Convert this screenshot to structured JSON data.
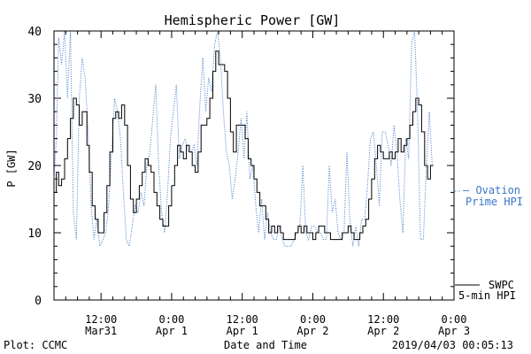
{
  "chart_data": {
    "type": "line",
    "title": "Hemispheric Power [GW]",
    "xlabel": "Date and Time",
    "ylabel": "P [GW]",
    "ylim": [
      0,
      40
    ],
    "yticks": [
      0,
      10,
      20,
      30,
      40
    ],
    "x_units": "hours since Mar 31 00:00",
    "xlim": [
      4,
      72
    ],
    "xticks": [
      {
        "x": 12,
        "line1": "12:00",
        "line2": "Mar31"
      },
      {
        "x": 24,
        "line1": "0:00",
        "line2": "Apr 1"
      },
      {
        "x": 36,
        "line1": "12:00",
        "line2": "Apr 1"
      },
      {
        "x": 48,
        "line1": "0:00",
        "line2": "Apr 2"
      },
      {
        "x": 60,
        "line1": "12:00",
        "line2": "Apr 2"
      },
      {
        "x": 72,
        "line1": "0:00",
        "line2": "Apr 3"
      }
    ],
    "series": [
      {
        "name": "SWPC 5-min HPI",
        "color": "#000000",
        "style": "solid",
        "points": [
          [
            4.0,
            16
          ],
          [
            4.4,
            19
          ],
          [
            4.8,
            17
          ],
          [
            5.3,
            18
          ],
          [
            5.8,
            21
          ],
          [
            6.3,
            24
          ],
          [
            6.8,
            27
          ],
          [
            7.3,
            30
          ],
          [
            7.8,
            29
          ],
          [
            8.3,
            26
          ],
          [
            8.8,
            28
          ],
          [
            9.2,
            28
          ],
          [
            9.6,
            23
          ],
          [
            10.0,
            19
          ],
          [
            10.5,
            14
          ],
          [
            11.0,
            12
          ],
          [
            11.5,
            10
          ],
          [
            12.0,
            10
          ],
          [
            12.5,
            13
          ],
          [
            13.0,
            17
          ],
          [
            13.5,
            22
          ],
          [
            14.0,
            27
          ],
          [
            14.5,
            28
          ],
          [
            15.0,
            27
          ],
          [
            15.5,
            29
          ],
          [
            16.0,
            26
          ],
          [
            16.5,
            20
          ],
          [
            17.0,
            15
          ],
          [
            17.5,
            13
          ],
          [
            18.0,
            15
          ],
          [
            18.5,
            17
          ],
          [
            19.0,
            19
          ],
          [
            19.5,
            21
          ],
          [
            20.0,
            20
          ],
          [
            20.5,
            19
          ],
          [
            21.0,
            16
          ],
          [
            21.5,
            14
          ],
          [
            22.0,
            12
          ],
          [
            22.5,
            11
          ],
          [
            23.0,
            11
          ],
          [
            23.5,
            14
          ],
          [
            24.0,
            17
          ],
          [
            24.5,
            20
          ],
          [
            25.0,
            23
          ],
          [
            25.5,
            22
          ],
          [
            26.0,
            21
          ],
          [
            26.5,
            23
          ],
          [
            27.0,
            22
          ],
          [
            27.5,
            20
          ],
          [
            28.0,
            19
          ],
          [
            28.5,
            22
          ],
          [
            29.0,
            26
          ],
          [
            29.5,
            26
          ],
          [
            30.0,
            27
          ],
          [
            30.5,
            30
          ],
          [
            31.0,
            34
          ],
          [
            31.5,
            37
          ],
          [
            32.0,
            35
          ],
          [
            32.5,
            35
          ],
          [
            33.0,
            34
          ],
          [
            33.5,
            30
          ],
          [
            34.0,
            25
          ],
          [
            34.5,
            22
          ],
          [
            35.0,
            26
          ],
          [
            35.5,
            26
          ],
          [
            36.0,
            26
          ],
          [
            36.5,
            24
          ],
          [
            37.0,
            21
          ],
          [
            37.5,
            20
          ],
          [
            38.0,
            18
          ],
          [
            38.5,
            16
          ],
          [
            39.0,
            14
          ],
          [
            39.5,
            14
          ],
          [
            40.0,
            12
          ],
          [
            40.5,
            10
          ],
          [
            41.0,
            11
          ],
          [
            41.5,
            10
          ],
          [
            42.0,
            11
          ],
          [
            42.5,
            10
          ],
          [
            43.0,
            9
          ],
          [
            43.5,
            9
          ],
          [
            44.0,
            9
          ],
          [
            44.5,
            9
          ],
          [
            45.0,
            10
          ],
          [
            45.5,
            11
          ],
          [
            46.0,
            10
          ],
          [
            46.5,
            11
          ],
          [
            47.0,
            10
          ],
          [
            47.5,
            10
          ],
          [
            48.0,
            9
          ],
          [
            48.5,
            10
          ],
          [
            49.0,
            11
          ],
          [
            49.5,
            11
          ],
          [
            50.0,
            10
          ],
          [
            50.5,
            10
          ],
          [
            51.0,
            9
          ],
          [
            51.5,
            9
          ],
          [
            52.0,
            9
          ],
          [
            52.5,
            9
          ],
          [
            53.0,
            10
          ],
          [
            53.5,
            10
          ],
          [
            54.0,
            11
          ],
          [
            54.5,
            10
          ],
          [
            55.0,
            9
          ],
          [
            55.5,
            9
          ],
          [
            56.0,
            10
          ],
          [
            56.5,
            11
          ],
          [
            57.0,
            12
          ],
          [
            57.5,
            15
          ],
          [
            58.0,
            18
          ],
          [
            58.5,
            21
          ],
          [
            59.0,
            23
          ],
          [
            59.5,
            22
          ],
          [
            60.0,
            21
          ],
          [
            60.5,
            21
          ],
          [
            61.0,
            22
          ],
          [
            61.5,
            21
          ],
          [
            62.0,
            22
          ],
          [
            62.5,
            24
          ],
          [
            63.0,
            22
          ],
          [
            63.5,
            23
          ],
          [
            64.0,
            24
          ],
          [
            64.5,
            26
          ],
          [
            65.0,
            28
          ],
          [
            65.5,
            30
          ],
          [
            66.0,
            29
          ],
          [
            66.5,
            25
          ],
          [
            67.0,
            20
          ],
          [
            67.5,
            18
          ],
          [
            68.0,
            20
          ],
          [
            68.5,
            20
          ]
        ]
      },
      {
        "name": "Ovation Prime HPI",
        "color": "#3a78c8",
        "style": "dotted",
        "points": [
          [
            4.0,
            18
          ],
          [
            4.4,
            24
          ],
          [
            4.8,
            39
          ],
          [
            5.3,
            35
          ],
          [
            5.8,
            40
          ],
          [
            6.3,
            30
          ],
          [
            6.8,
            41
          ],
          [
            7.3,
            13
          ],
          [
            7.8,
            9
          ],
          [
            8.3,
            30
          ],
          [
            8.8,
            36
          ],
          [
            9.3,
            33
          ],
          [
            9.8,
            25
          ],
          [
            10.3,
            14
          ],
          [
            10.8,
            9
          ],
          [
            11.3,
            12
          ],
          [
            11.8,
            8
          ],
          [
            12.3,
            9
          ],
          [
            12.8,
            10
          ],
          [
            13.3,
            14
          ],
          [
            13.8,
            22
          ],
          [
            14.3,
            30
          ],
          [
            14.8,
            28
          ],
          [
            15.3,
            24
          ],
          [
            15.8,
            16
          ],
          [
            16.3,
            9
          ],
          [
            16.8,
            8
          ],
          [
            17.3,
            11
          ],
          [
            17.8,
            14
          ],
          [
            18.3,
            13
          ],
          [
            18.8,
            16
          ],
          [
            19.3,
            14
          ],
          [
            19.8,
            20
          ],
          [
            20.3,
            22
          ],
          [
            20.8,
            27
          ],
          [
            21.3,
            32
          ],
          [
            21.8,
            20
          ],
          [
            22.3,
            13
          ],
          [
            22.8,
            10
          ],
          [
            23.3,
            16
          ],
          [
            23.8,
            24
          ],
          [
            24.3,
            28
          ],
          [
            24.8,
            32
          ],
          [
            25.3,
            21
          ],
          [
            25.8,
            23
          ],
          [
            26.3,
            24
          ],
          [
            26.8,
            22
          ],
          [
            27.3,
            22
          ],
          [
            27.8,
            23
          ],
          [
            28.3,
            20
          ],
          [
            28.8,
            29
          ],
          [
            29.3,
            36
          ],
          [
            29.8,
            28
          ],
          [
            30.3,
            33
          ],
          [
            30.8,
            31
          ],
          [
            31.3,
            38
          ],
          [
            31.8,
            41
          ],
          [
            32.3,
            36
          ],
          [
            32.8,
            28
          ],
          [
            33.3,
            22
          ],
          [
            33.8,
            20
          ],
          [
            34.3,
            15
          ],
          [
            34.8,
            18
          ],
          [
            35.3,
            22
          ],
          [
            35.8,
            27
          ],
          [
            36.3,
            21
          ],
          [
            36.8,
            28
          ],
          [
            37.3,
            18
          ],
          [
            37.8,
            20
          ],
          [
            38.3,
            14
          ],
          [
            38.8,
            10
          ],
          [
            39.3,
            15
          ],
          [
            39.8,
            9
          ],
          [
            40.3,
            13
          ],
          [
            40.8,
            10
          ],
          [
            41.3,
            9
          ],
          [
            41.8,
            9
          ],
          [
            42.3,
            11
          ],
          [
            42.8,
            9
          ],
          [
            43.3,
            8
          ],
          [
            43.8,
            8
          ],
          [
            44.3,
            8
          ],
          [
            44.8,
            9
          ],
          [
            45.3,
            10
          ],
          [
            45.8,
            11
          ],
          [
            46.3,
            20
          ],
          [
            46.8,
            10
          ],
          [
            47.3,
            9
          ],
          [
            47.8,
            11
          ],
          [
            48.3,
            11
          ],
          [
            48.8,
            10
          ],
          [
            49.3,
            10
          ],
          [
            49.8,
            9
          ],
          [
            50.3,
            9
          ],
          [
            50.8,
            20
          ],
          [
            51.3,
            13
          ],
          [
            51.8,
            15
          ],
          [
            52.3,
            10
          ],
          [
            52.8,
            9
          ],
          [
            53.3,
            10
          ],
          [
            53.8,
            22
          ],
          [
            54.3,
            12
          ],
          [
            54.8,
            8
          ],
          [
            55.3,
            11
          ],
          [
            55.8,
            8
          ],
          [
            56.3,
            12
          ],
          [
            56.8,
            12
          ],
          [
            57.3,
            17
          ],
          [
            57.8,
            24
          ],
          [
            58.3,
            25
          ],
          [
            58.8,
            20
          ],
          [
            59.3,
            14
          ],
          [
            59.8,
            25
          ],
          [
            60.3,
            25
          ],
          [
            60.8,
            23
          ],
          [
            61.3,
            20
          ],
          [
            61.8,
            26
          ],
          [
            62.3,
            22
          ],
          [
            62.8,
            15
          ],
          [
            63.3,
            10
          ],
          [
            63.8,
            24
          ],
          [
            64.3,
            21
          ],
          [
            64.8,
            38
          ],
          [
            65.3,
            41
          ],
          [
            65.8,
            28
          ],
          [
            66.3,
            9
          ],
          [
            66.8,
            9
          ],
          [
            67.3,
            20
          ],
          [
            67.8,
            28
          ],
          [
            68.3,
            20
          ]
        ]
      }
    ],
    "legend": {
      "ovation_line1": "— Ovation",
      "ovation_line2": "Prime HPI",
      "swpc_line1": "SWPC",
      "swpc_line2": "5-min HPI"
    }
  },
  "footer": {
    "plot_credit": "Plot: CCMC",
    "timestamp": "2019/04/03 00:05:13"
  }
}
